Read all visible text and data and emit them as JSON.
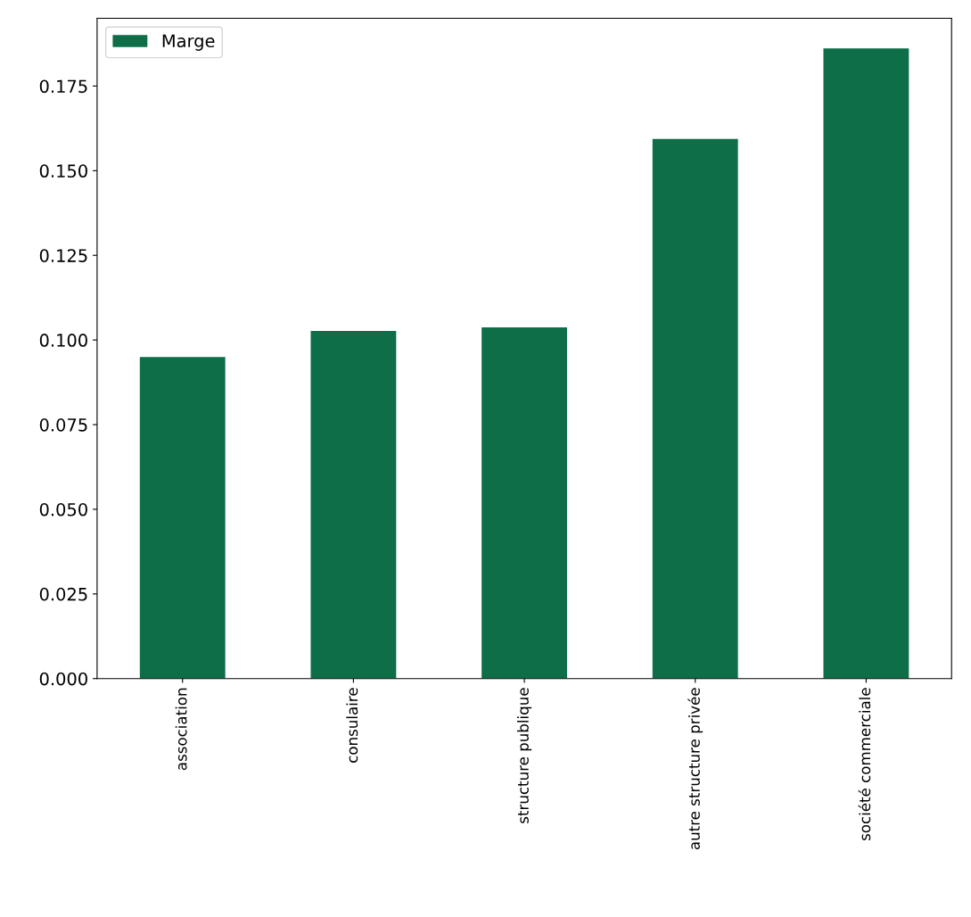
{
  "chart_data": {
    "type": "bar",
    "categories": [
      "association",
      "consulaire",
      "structure publique",
      "autre structure privée",
      "société commerciale"
    ],
    "series": [
      {
        "name": "Marge",
        "color": "#0d6e48",
        "values": [
          0.095,
          0.1027,
          0.1037,
          0.1594,
          0.1861
        ]
      }
    ],
    "ylim": [
      0,
      0.195
    ],
    "yticks": [
      {
        "value": 0,
        "label": "0.000"
      },
      {
        "value": 0.025,
        "label": "0.025"
      },
      {
        "value": 0.05,
        "label": "0.050"
      },
      {
        "value": 0.075,
        "label": "0.075"
      },
      {
        "value": 0.1,
        "label": "0.100"
      },
      {
        "value": 0.125,
        "label": "0.125"
      },
      {
        "value": 0.15,
        "label": "0.150"
      },
      {
        "value": 0.175,
        "label": "0.175"
      }
    ],
    "legend": "top left",
    "grid": false
  }
}
